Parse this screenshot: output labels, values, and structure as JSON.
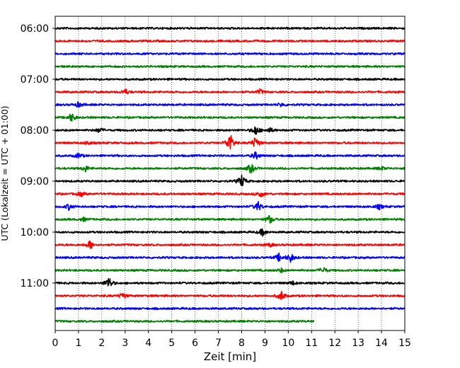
{
  "chart_data": {
    "type": "line",
    "title": "",
    "xlabel": "Zeit  [min]",
    "ylabel": "UTC (Lokalzeit = UTC + 01:00)",
    "xlim": [
      0,
      15
    ],
    "xticks": [
      0,
      1,
      2,
      3,
      4,
      5,
      6,
      7,
      8,
      9,
      10,
      11,
      12,
      13,
      14,
      15
    ],
    "ytick_labels": [
      "06:00",
      "07:00",
      "08:00",
      "09:00",
      "10:00",
      "11:00"
    ],
    "grid": "vertical dotted",
    "legend": "none",
    "row_interval_minutes": 15,
    "start_time": "06:00",
    "color_cycle": [
      "#000000",
      "#ff0000",
      "#0000ff",
      "#008000"
    ],
    "series": [
      {
        "start": "06:00",
        "color": "black",
        "end_min": 15,
        "events": []
      },
      {
        "start": "06:15",
        "color": "red",
        "end_min": 15,
        "events": []
      },
      {
        "start": "06:30",
        "color": "blue",
        "end_min": 15,
        "events": []
      },
      {
        "start": "06:45",
        "color": "green",
        "end_min": 15,
        "events": []
      },
      {
        "start": "07:00",
        "color": "black",
        "end_min": 15,
        "events": []
      },
      {
        "start": "07:15",
        "color": "red",
        "end_min": 15,
        "events": [
          [
            3.0,
            0.5
          ],
          [
            8.8,
            0.4
          ]
        ]
      },
      {
        "start": "07:30",
        "color": "blue",
        "end_min": 15,
        "events": [
          [
            1.0,
            0.4
          ],
          [
            9.7,
            0.3
          ]
        ]
      },
      {
        "start": "07:45",
        "color": "green",
        "end_min": 15,
        "events": [
          [
            0.7,
            0.7
          ]
        ]
      },
      {
        "start": "08:00",
        "color": "black",
        "end_min": 15,
        "events": [
          [
            1.9,
            0.4
          ],
          [
            8.6,
            0.8
          ],
          [
            9.2,
            0.4
          ]
        ]
      },
      {
        "start": "08:15",
        "color": "red",
        "end_min": 15,
        "events": [
          [
            7.5,
            1.6
          ],
          [
            8.6,
            1.0
          ],
          [
            1.4,
            0.3
          ]
        ]
      },
      {
        "start": "08:30",
        "color": "blue",
        "end_min": 15,
        "events": [
          [
            1.0,
            0.4
          ],
          [
            8.6,
            0.6
          ]
        ]
      },
      {
        "start": "08:45",
        "color": "green",
        "end_min": 15,
        "events": [
          [
            1.3,
            0.5
          ],
          [
            8.4,
            0.8
          ],
          [
            14.0,
            0.3
          ]
        ]
      },
      {
        "start": "09:00",
        "color": "black",
        "end_min": 15,
        "events": [
          [
            8.0,
            1.0
          ]
        ]
      },
      {
        "start": "09:15",
        "color": "red",
        "end_min": 15,
        "events": [
          [
            1.1,
            0.4
          ],
          [
            8.8,
            0.6
          ]
        ]
      },
      {
        "start": "09:30",
        "color": "blue",
        "end_min": 15,
        "events": [
          [
            0.6,
            0.5
          ],
          [
            8.7,
            0.8
          ],
          [
            13.9,
            0.4
          ]
        ]
      },
      {
        "start": "09:45",
        "color": "green",
        "end_min": 15,
        "events": [
          [
            1.2,
            0.3
          ],
          [
            9.2,
            0.7
          ]
        ]
      },
      {
        "start": "10:00",
        "color": "black",
        "end_min": 15,
        "events": [
          [
            8.9,
            0.6
          ]
        ]
      },
      {
        "start": "10:15",
        "color": "red",
        "end_min": 15,
        "events": [
          [
            1.5,
            0.7
          ],
          [
            9.2,
            0.3
          ]
        ]
      },
      {
        "start": "10:30",
        "color": "blue",
        "end_min": 15,
        "events": [
          [
            9.6,
            0.6
          ],
          [
            10.1,
            0.7
          ]
        ]
      },
      {
        "start": "10:45",
        "color": "green",
        "end_min": 15,
        "events": [
          [
            11.5,
            0.5
          ],
          [
            9.7,
            0.3
          ]
        ]
      },
      {
        "start": "11:00",
        "color": "black",
        "end_min": 15,
        "events": [
          [
            2.3,
            1.0
          ],
          [
            10.2,
            0.3
          ]
        ]
      },
      {
        "start": "11:15",
        "color": "red",
        "end_min": 15,
        "events": [
          [
            2.9,
            0.5
          ],
          [
            9.7,
            0.8
          ]
        ]
      },
      {
        "start": "11:30",
        "color": "blue",
        "end_min": 15,
        "events": []
      },
      {
        "start": "11:45",
        "color": "green",
        "end_min": 11.1,
        "events": []
      }
    ]
  }
}
